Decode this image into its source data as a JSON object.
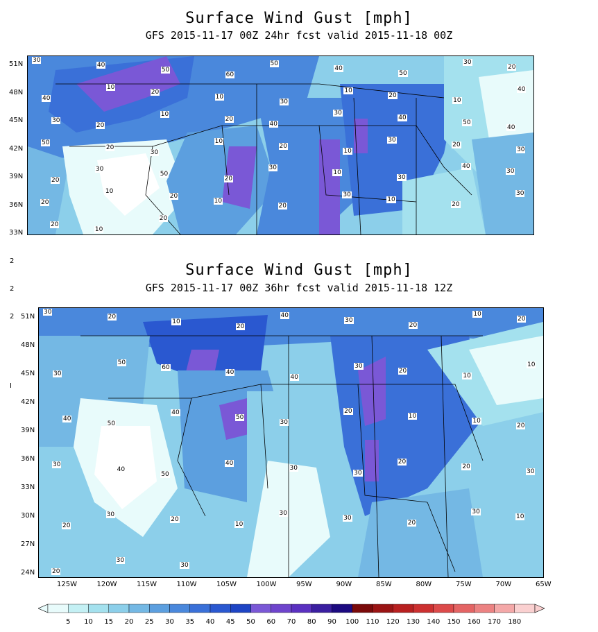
{
  "panels": [
    {
      "title": "Surface Wind Gust [mph]",
      "subtitle": "GFS 2015-11-17 00Z 24hr fcst valid 2015-11-18 00Z",
      "lat_ticks": [
        "51N",
        "48N",
        "45N",
        "42N",
        "39N",
        "36N",
        "33N"
      ],
      "contour_labels": [
        "30",
        "40",
        "50",
        "60",
        "50",
        "40",
        "50",
        "30",
        "20",
        "40",
        "10",
        "20",
        "10",
        "30",
        "10",
        "20",
        "10",
        "40",
        "30",
        "20",
        "10",
        "20",
        "40",
        "30",
        "40",
        "50",
        "40",
        "50",
        "20",
        "30",
        "10",
        "20",
        "10",
        "30",
        "20",
        "30",
        "20",
        "30",
        "50",
        "20",
        "30",
        "10",
        "30",
        "40",
        "30",
        "20",
        "10",
        "20",
        "10",
        "20",
        "30",
        "10",
        "20",
        "30",
        "20",
        "10",
        "20"
      ]
    },
    {
      "title": "Surface Wind Gust [mph]",
      "subtitle": "GFS 2015-11-17 00Z 36hr fcst valid 2015-11-18 12Z",
      "lat_ticks": [
        "51N",
        "48N",
        "45N",
        "42N",
        "39N",
        "36N",
        "33N",
        "30N",
        "27N",
        "24N"
      ],
      "lon_ticks": [
        "125W",
        "120W",
        "115W",
        "110W",
        "105W",
        "100W",
        "95W",
        "90W",
        "85W",
        "80W",
        "75W",
        "70W",
        "65W"
      ],
      "contour_labels": [
        "30",
        "20",
        "10",
        "20",
        "40",
        "30",
        "20",
        "10",
        "20",
        "30",
        "50",
        "60",
        "40",
        "40",
        "30",
        "20",
        "10",
        "10",
        "40",
        "50",
        "40",
        "50",
        "30",
        "20",
        "10",
        "10",
        "20",
        "30",
        "40",
        "50",
        "40",
        "30",
        "30",
        "20",
        "20",
        "30",
        "20",
        "30",
        "20",
        "10",
        "30",
        "30",
        "20",
        "30",
        "10",
        "20",
        "30",
        "30"
      ]
    }
  ],
  "stray_marks": [
    "2",
    "2",
    "2",
    "I"
  ],
  "colorbar": {
    "labels": [
      "5",
      "10",
      "15",
      "20",
      "25",
      "30",
      "35",
      "40",
      "45",
      "50",
      "60",
      "70",
      "80",
      "90",
      "100",
      "110",
      "120",
      "130",
      "140",
      "150",
      "160",
      "170",
      "180"
    ],
    "colors": [
      "#e8fbfb",
      "#c4f0f4",
      "#a4e1ee",
      "#8ccfea",
      "#74b8e4",
      "#5c9fdf",
      "#4a88dc",
      "#3a70d8",
      "#2a58d0",
      "#1e44c4",
      "#7a58d6",
      "#6e44cc",
      "#5a30c0",
      "#3a1ea0",
      "#1c0a80",
      "#7a0a0a",
      "#9a1414",
      "#b82020",
      "#cc3030",
      "#dc4a4a",
      "#e46464",
      "#ec8282",
      "#f4a8a8",
      "#fad0d0"
    ]
  }
}
